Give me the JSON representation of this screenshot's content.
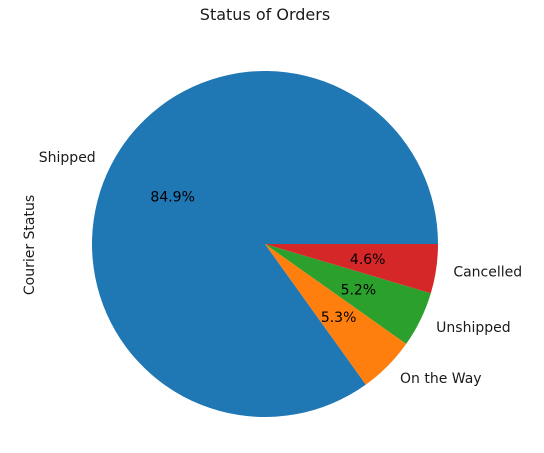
{
  "chart_data": {
    "type": "pie",
    "title": "Status of Orders",
    "ylabel": "Courier Status",
    "slices": [
      {
        "label": "Shipped",
        "value": 84.9,
        "pct_label": "84.9%",
        "color": "#1f77b4"
      },
      {
        "label": "On the Way",
        "value": 5.3,
        "pct_label": "5.3%",
        "color": "#ff7f0e"
      },
      {
        "label": "Unshipped",
        "value": 5.2,
        "pct_label": "5.2%",
        "color": "#2ca02c"
      },
      {
        "label": "Cancelled",
        "value": 4.6,
        "pct_label": "4.6%",
        "color": "#d62728"
      }
    ],
    "start_angle_deg": 0,
    "direction": "counterclockwise"
  }
}
